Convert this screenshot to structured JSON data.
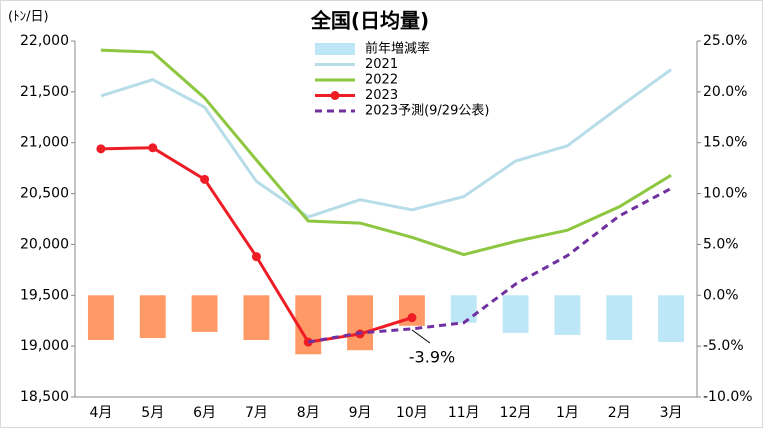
{
  "chart_data": {
    "type": "combo",
    "title": "全国(日均量)",
    "y_label": "(ﾄﾝ/日)",
    "categories": [
      "4月",
      "5月",
      "6月",
      "7月",
      "8月",
      "9月",
      "10月",
      "11月",
      "12月",
      "1月",
      "2月",
      "3月"
    ],
    "ylim": [
      18500,
      22000
    ],
    "yticks": [
      {
        "value": 18500,
        "label": "18,500"
      },
      {
        "value": 19000,
        "label": "19,000"
      },
      {
        "value": 19500,
        "label": "19,500"
      },
      {
        "value": 20000,
        "label": "20,000"
      },
      {
        "value": 20500,
        "label": "20,500"
      },
      {
        "value": 21000,
        "label": "21,000"
      },
      {
        "value": 21500,
        "label": "21,500"
      },
      {
        "value": 22000,
        "label": "22,000"
      }
    ],
    "y2lim": [
      -10,
      25
    ],
    "y2ticks": [
      {
        "value": -10,
        "label": "-10.0%"
      },
      {
        "value": -5,
        "label": "-5.0%"
      },
      {
        "value": 0,
        "label": "0.0%"
      },
      {
        "value": 5,
        "label": "5.0%"
      },
      {
        "value": 10,
        "label": "10.0%"
      },
      {
        "value": 15,
        "label": "15.0%"
      },
      {
        "value": 20,
        "label": "20.0%"
      },
      {
        "value": 25,
        "label": "25.0%"
      }
    ],
    "series": [
      {
        "name": "前年増減率",
        "type": "bar",
        "axis": "y2",
        "color": "#bde7f7",
        "colors": [
          "#ff9a66",
          "#ff9a66",
          "#ff9a66",
          "#ff9a66",
          "#ff9a66",
          "#ff9a66",
          "#ff9a66",
          "#bde7f7",
          "#bde7f7",
          "#bde7f7",
          "#bde7f7",
          "#bde7f7"
        ],
        "values": [
          -4.4,
          -4.2,
          -3.6,
          -4.4,
          -5.8,
          -5.4,
          -3.0,
          -2.7,
          -3.7,
          -3.9,
          -4.4,
          -4.6
        ]
      },
      {
        "name": "2021",
        "type": "line",
        "color": "#b7dde9",
        "values": [
          21460,
          21620,
          21350,
          20620,
          20270,
          20440,
          20340,
          20470,
          20820,
          20970,
          21350,
          21720
        ]
      },
      {
        "name": "2022",
        "type": "line",
        "color": "#8dc63f",
        "values": [
          21910,
          21890,
          21440,
          20830,
          20230,
          20210,
          20070,
          19900,
          20030,
          20140,
          20370,
          20680
        ]
      },
      {
        "name": "2023",
        "type": "line",
        "color": "#ee1c25",
        "marker": true,
        "values": [
          20940,
          20950,
          20640,
          19880,
          19040,
          19120,
          19280,
          null,
          null,
          null,
          null,
          null
        ]
      },
      {
        "name": "2023予測(9/29公表)",
        "type": "line",
        "color": "#7030a0",
        "dash": true,
        "values": [
          null,
          null,
          null,
          null,
          19040,
          19130,
          19170,
          19230,
          19610,
          19890,
          20280,
          20550
        ]
      }
    ],
    "annotations": [
      {
        "text": "-3.9%"
      }
    ]
  }
}
